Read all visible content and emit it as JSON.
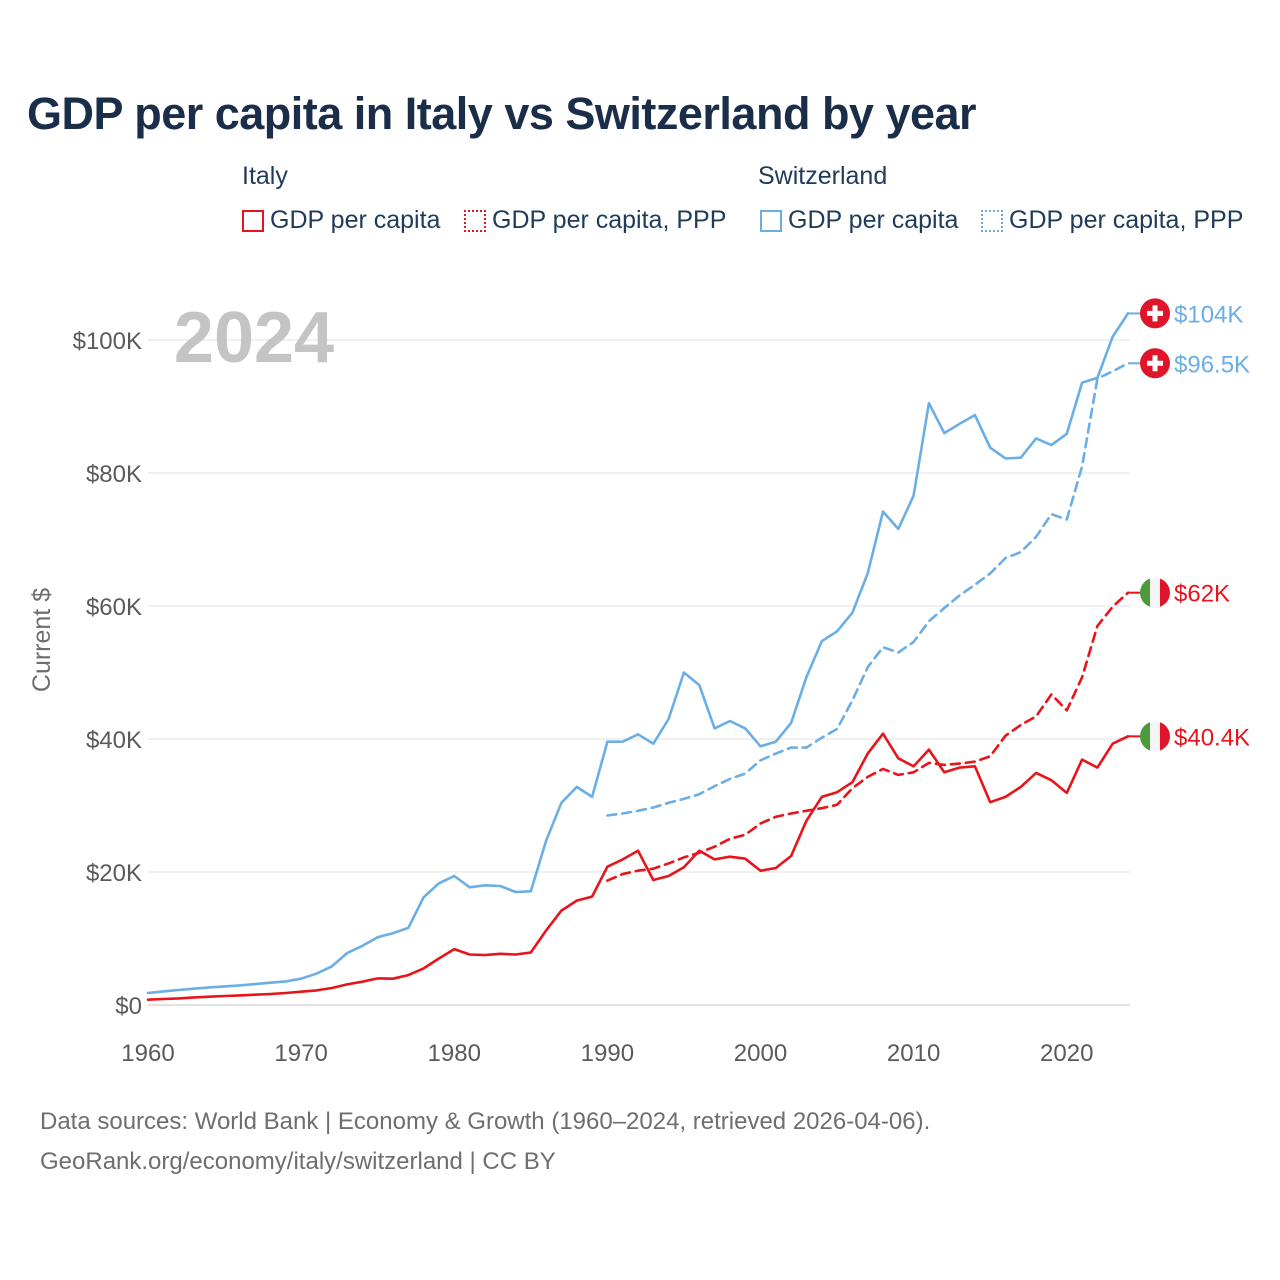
{
  "title": "GDP per capita in Italy vs Switzerland by year",
  "legend": {
    "italy": {
      "label": "Italy",
      "items": [
        {
          "label": "GDP per capita",
          "style": "solid",
          "color": "#e8141b"
        },
        {
          "label": "GDP per capita, PPP",
          "style": "dotted",
          "color": "#e8141b"
        }
      ]
    },
    "switzerland": {
      "label": "Switzerland",
      "items": [
        {
          "label": "GDP per capita",
          "style": "solid",
          "color": "#6aaee6"
        },
        {
          "label": "GDP per capita, PPP",
          "style": "dotted",
          "color": "#6aaee6"
        }
      ]
    }
  },
  "year_watermark": "2024",
  "footer": {
    "line1": "Data sources: World Bank | Economy & Growth (1960–2024, retrieved 2026-04-06).",
    "line2": "GeoRank.org/economy/italy/switzerland | CC BY"
  },
  "chart_data": {
    "type": "line",
    "title": "GDP per capita in Italy vs Switzerland by year",
    "xlabel": "",
    "ylabel": "Current $",
    "xlim": [
      1960,
      2024
    ],
    "ylim": [
      0,
      100000
    ],
    "grid": true,
    "x_ticks": [
      1960,
      1970,
      1980,
      1990,
      2000,
      2010,
      2020
    ],
    "x_tick_labels": [
      "1960",
      "1970",
      "1980",
      "1990",
      "2000",
      "2010",
      "2020"
    ],
    "y_ticks": [
      0,
      20000,
      40000,
      60000,
      80000,
      100000
    ],
    "y_tick_labels": [
      "$0",
      "$20K",
      "$40K",
      "$60K",
      "$80K",
      "$100K"
    ],
    "series": [
      {
        "name": "Switzerland GDP per capita",
        "country": "Switzerland",
        "dash": "solid",
        "color": "#6aaee6",
        "end_label": "$104K",
        "x": [
          1960,
          1961,
          1962,
          1963,
          1964,
          1965,
          1966,
          1967,
          1968,
          1969,
          1970,
          1971,
          1972,
          1973,
          1974,
          1975,
          1976,
          1977,
          1978,
          1979,
          1980,
          1981,
          1982,
          1983,
          1984,
          1985,
          1986,
          1987,
          1988,
          1989,
          1990,
          1991,
          1992,
          1993,
          1994,
          1995,
          1996,
          1997,
          1998,
          1999,
          2000,
          2001,
          2002,
          2003,
          2004,
          2005,
          2006,
          2007,
          2008,
          2009,
          2010,
          2011,
          2012,
          2013,
          2014,
          2015,
          2016,
          2017,
          2018,
          2019,
          2020,
          2021,
          2022,
          2023,
          2024
        ],
        "y": [
          1800,
          2050,
          2250,
          2450,
          2650,
          2800,
          2950,
          3150,
          3350,
          3550,
          3950,
          4700,
          5800,
          7800,
          8900,
          10200,
          10800,
          11600,
          16200,
          18300,
          19400,
          17700,
          18000,
          17900,
          17000,
          17100,
          24700,
          30400,
          32800,
          31300,
          39600,
          39600,
          40700,
          39300,
          43000,
          50000,
          48100,
          41600,
          42700,
          41600,
          38900,
          39600,
          42400,
          49300,
          54700,
          56200,
          59000,
          64900,
          74200,
          71600,
          76600,
          90500,
          86000,
          87400,
          88700,
          83800,
          82200,
          82300,
          85200,
          84200,
          85900,
          93600,
          94300,
          100500,
          104000
        ]
      },
      {
        "name": "Switzerland GDP per capita, PPP",
        "country": "Switzerland",
        "dash": "dashed",
        "color": "#6aaee6",
        "end_label": "$96.5K",
        "x": [
          1990,
          1991,
          1992,
          1993,
          1994,
          1995,
          1996,
          1997,
          1998,
          1999,
          2000,
          2001,
          2002,
          2003,
          2004,
          2005,
          2006,
          2007,
          2008,
          2009,
          2010,
          2011,
          2012,
          2013,
          2014,
          2015,
          2016,
          2017,
          2018,
          2019,
          2020,
          2021,
          2022,
          2023,
          2024
        ],
        "y": [
          28500,
          28800,
          29200,
          29700,
          30400,
          31000,
          31700,
          32900,
          34000,
          34800,
          36800,
          37800,
          38700,
          38700,
          40200,
          41500,
          45800,
          50800,
          53800,
          53000,
          54600,
          57700,
          59700,
          61600,
          63200,
          64900,
          67200,
          68100,
          70400,
          73800,
          73000,
          81000,
          94200,
          95300,
          96500
        ]
      },
      {
        "name": "Italy GDP per capita",
        "country": "Italy",
        "dash": "solid",
        "color": "#e8141b",
        "end_label": "$40.4K",
        "x": [
          1960,
          1961,
          1962,
          1963,
          1964,
          1965,
          1966,
          1967,
          1968,
          1969,
          1970,
          1971,
          1972,
          1973,
          1974,
          1975,
          1976,
          1977,
          1978,
          1979,
          1980,
          1981,
          1982,
          1983,
          1984,
          1985,
          1986,
          1987,
          1988,
          1989,
          1990,
          1991,
          1992,
          1993,
          1994,
          1995,
          1996,
          1997,
          1998,
          1999,
          2000,
          2001,
          2002,
          2003,
          2004,
          2005,
          2006,
          2007,
          2008,
          2009,
          2010,
          2011,
          2012,
          2013,
          2014,
          2015,
          2016,
          2017,
          2018,
          2019,
          2020,
          2021,
          2022,
          2023,
          2024
        ],
        "y": [
          800,
          900,
          1000,
          1150,
          1250,
          1350,
          1450,
          1550,
          1650,
          1800,
          2000,
          2200,
          2550,
          3100,
          3500,
          4000,
          3950,
          4500,
          5500,
          7000,
          8400,
          7600,
          7500,
          7700,
          7600,
          7900,
          11200,
          14200,
          15700,
          16300,
          20800,
          21900,
          23200,
          18800,
          19400,
          20700,
          23200,
          21900,
          22300,
          22000,
          20200,
          20600,
          22400,
          27700,
          31300,
          32000,
          33500,
          37800,
          40800,
          37100,
          35900,
          38400,
          35000,
          35700,
          35900,
          30500,
          31300,
          32800,
          34900,
          33800,
          31900,
          36900,
          35700,
          39300,
          40400
        ]
      },
      {
        "name": "Italy GDP per capita, PPP",
        "country": "Italy",
        "dash": "dashed",
        "color": "#e8141b",
        "end_label": "$62K",
        "x": [
          1990,
          1991,
          1992,
          1993,
          1994,
          1995,
          1996,
          1997,
          1998,
          1999,
          2000,
          2001,
          2002,
          2003,
          2004,
          2005,
          2006,
          2007,
          2008,
          2009,
          2010,
          2011,
          2012,
          2013,
          2014,
          2015,
          2016,
          2017,
          2018,
          2019,
          2020,
          2021,
          2022,
          2023,
          2024
        ],
        "y": [
          18700,
          19700,
          20200,
          20500,
          21300,
          22200,
          22900,
          23800,
          25000,
          25600,
          27300,
          28300,
          28800,
          29200,
          29600,
          30100,
          32600,
          34300,
          35500,
          34600,
          35000,
          36400,
          36100,
          36300,
          36600,
          37400,
          40500,
          42100,
          43400,
          46700,
          44300,
          49300,
          57000,
          59900,
          62000
        ]
      }
    ]
  }
}
